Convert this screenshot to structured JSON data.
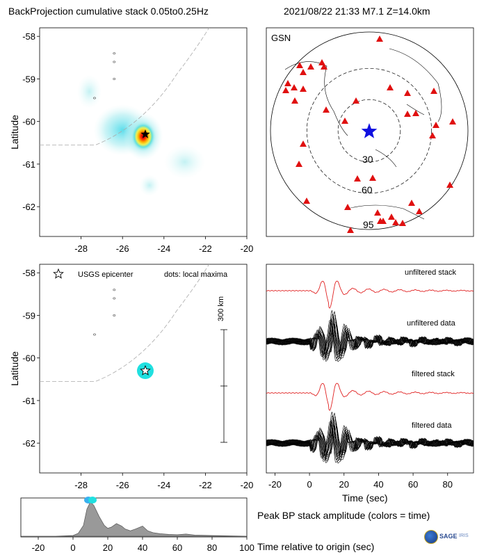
{
  "header": {
    "title_left": "BackProjection cumulative stack 0.05to0.25Hz",
    "title_right": "2021/08/22 21:33   M7.1   Z=14.0km"
  },
  "colors": {
    "station": "#e01010",
    "epicenter_star_map": "#1010e0",
    "stack_trace": "#e02020",
    "data_trace": "#000000",
    "peak_dot": "#20e0e0",
    "amplitude_fill": "#999999"
  },
  "chart_data": [
    {
      "type": "heatmap",
      "name": "cumulative-backprojection",
      "xlabel": "",
      "ylabel": "Latitude",
      "xlim": [
        -30,
        -20
      ],
      "ylim": [
        -62.7,
        -57.8
      ],
      "xticks": [
        -28,
        -26,
        -24,
        -22,
        -20
      ],
      "yticks": [
        -58,
        -59,
        -60,
        -61,
        -62
      ],
      "epicenter": {
        "lon": -24.9,
        "lat": -60.3
      },
      "blobs": [
        {
          "lon": -25.0,
          "lat": -60.35,
          "rx": 0.6,
          "ry": 0.35,
          "level": 1.0
        },
        {
          "lon": -26.0,
          "lat": -60.2,
          "rx": 1.4,
          "ry": 0.6,
          "level": 0.45
        },
        {
          "lon": -23.0,
          "lat": -60.95,
          "rx": 1.0,
          "ry": 0.4,
          "level": 0.3
        },
        {
          "lon": -27.6,
          "lat": -59.3,
          "rx": 0.6,
          "ry": 0.4,
          "level": 0.25
        },
        {
          "lon": -24.7,
          "lat": -61.5,
          "rx": 0.5,
          "ry": 0.25,
          "level": 0.2
        }
      ]
    },
    {
      "type": "scatter",
      "name": "station-map",
      "label": "GSN",
      "ring_labels": [
        "30",
        "60",
        "95"
      ],
      "ring_degrees": [
        30,
        60,
        95
      ]
    },
    {
      "type": "scatter",
      "name": "local-maxima",
      "xlabel": "",
      "ylabel": "Latitude",
      "xlim": [
        -30,
        -20
      ],
      "ylim": [
        -62.7,
        -57.8
      ],
      "xticks": [
        -28,
        -26,
        -24,
        -22,
        -20
      ],
      "yticks": [
        -58,
        -59,
        -60,
        -61,
        -62
      ],
      "points": [
        {
          "lon": -24.9,
          "lat": -60.3
        }
      ],
      "legend": {
        "star": "USGS epicenter",
        "dots": "dots: local maxima"
      },
      "scale_bar": "300 km"
    },
    {
      "type": "line",
      "name": "waveforms",
      "xlabel": "Time (sec)",
      "xlim": [
        -25,
        95
      ],
      "xticks": [
        -20,
        0,
        20,
        40,
        60,
        80
      ],
      "traces": [
        "unfiltered stack",
        "unfiltered data",
        "filtered stack",
        "filtered data"
      ]
    },
    {
      "type": "area",
      "name": "peak-amplitude",
      "xlabel": "Time relative to origin (sec)",
      "xlim": [
        -30,
        100
      ],
      "xticks": [
        -20,
        0,
        20,
        40,
        60,
        80,
        100
      ],
      "x": [
        -30,
        -10,
        0,
        3,
        6,
        8,
        10,
        12,
        15,
        18,
        20,
        22,
        25,
        28,
        30,
        33,
        36,
        40,
        43,
        46,
        50,
        55,
        60,
        65,
        70,
        80,
        90,
        100
      ],
      "values": [
        0,
        0,
        0.02,
        0.08,
        0.3,
        0.75,
        0.95,
        0.85,
        0.55,
        0.3,
        0.22,
        0.25,
        0.35,
        0.28,
        0.2,
        0.15,
        0.2,
        0.28,
        0.15,
        0.1,
        0.07,
        0.05,
        0.04,
        0.06,
        0.03,
        0.02,
        0.01,
        0
      ],
      "peak_time": 10
    }
  ],
  "axes_text": {
    "ylabel_top": "Latitude",
    "ylabel_bottom": "Latitude",
    "map_label": "GSN",
    "ring_30": "30",
    "ring_60": "60",
    "ring_95": "95",
    "legend_star_label": "USGS epicenter",
    "legend_dots_label": "dots: local maxima",
    "scale_bar_label": "300 km",
    "trace_unfiltered_stack": "unfiltered stack",
    "trace_unfiltered_data": "unfiltered data",
    "trace_filtered_stack": "filtered stack",
    "trace_filtered_data": "filtered data",
    "waveform_xlabel": "Time (sec)",
    "amplitude_caption": "Peak BP stack amplitude (colors = time)",
    "amplitude_xlabel": "Time relative to origin (sec)",
    "logo_text": "SAGE"
  }
}
